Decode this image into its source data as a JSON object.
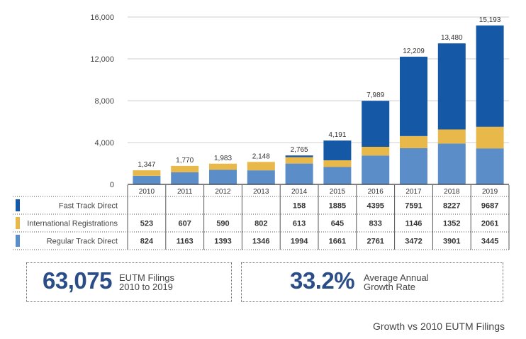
{
  "chart_data": {
    "type": "bar",
    "stacked": true,
    "categories": [
      "2010",
      "2011",
      "2012",
      "2013",
      "2014",
      "2015",
      "2016",
      "2017",
      "2018",
      "2019"
    ],
    "series": [
      {
        "name": "Regular Track Direct",
        "color": "#5b8ec8",
        "values": [
          824,
          1163,
          1393,
          1346,
          1994,
          1661,
          2761,
          3472,
          3901,
          3445
        ]
      },
      {
        "name": "International Registrations",
        "color": "#e8b84b",
        "values": [
          523,
          607,
          590,
          802,
          613,
          645,
          833,
          1146,
          1352,
          2061
        ]
      },
      {
        "name": "Fast Track Direct",
        "color": "#1558a6",
        "values": [
          null,
          null,
          null,
          null,
          158,
          1885,
          4395,
          7591,
          8227,
          9687
        ]
      }
    ],
    "totals": [
      "1,347",
      "1,770",
      "1,983",
      "2,148",
      "2,765",
      "4,191",
      "7,989",
      "12,209",
      "13,480",
      "15,193"
    ],
    "ylim": [
      0,
      16000
    ],
    "yticks": [
      0,
      4000,
      8000,
      12000,
      16000
    ],
    "ytick_labels": [
      "0",
      "4,000",
      "8,000",
      "12,000",
      "16,000"
    ],
    "grid": true,
    "table": {
      "rows": [
        {
          "label": "Fast Track Direct",
          "color": "#1558a6",
          "cells": [
            "",
            "",
            "",
            "",
            "158",
            "1885",
            "4395",
            "7591",
            "8227",
            "9687"
          ]
        },
        {
          "label": "International Registrations",
          "color": "#e8b84b",
          "cells": [
            "523",
            "607",
            "590",
            "802",
            "613",
            "645",
            "833",
            "1146",
            "1352",
            "2061"
          ]
        },
        {
          "label": "Regular Track Direct",
          "color": "#5b8ec8",
          "cells": [
            "824",
            "1163",
            "1393",
            "1346",
            "1994",
            "1661",
            "2761",
            "3472",
            "3901",
            "3445"
          ]
        }
      ]
    }
  },
  "stats": [
    {
      "value": "63,075",
      "label_line1": "EUTM Filings",
      "label_line2": "2010 to 2019"
    },
    {
      "value": "33.2%",
      "label_line1": "Average Annual",
      "label_line2": "Growth Rate"
    }
  ],
  "caption": "Growth vs 2010 EUTM Filings"
}
